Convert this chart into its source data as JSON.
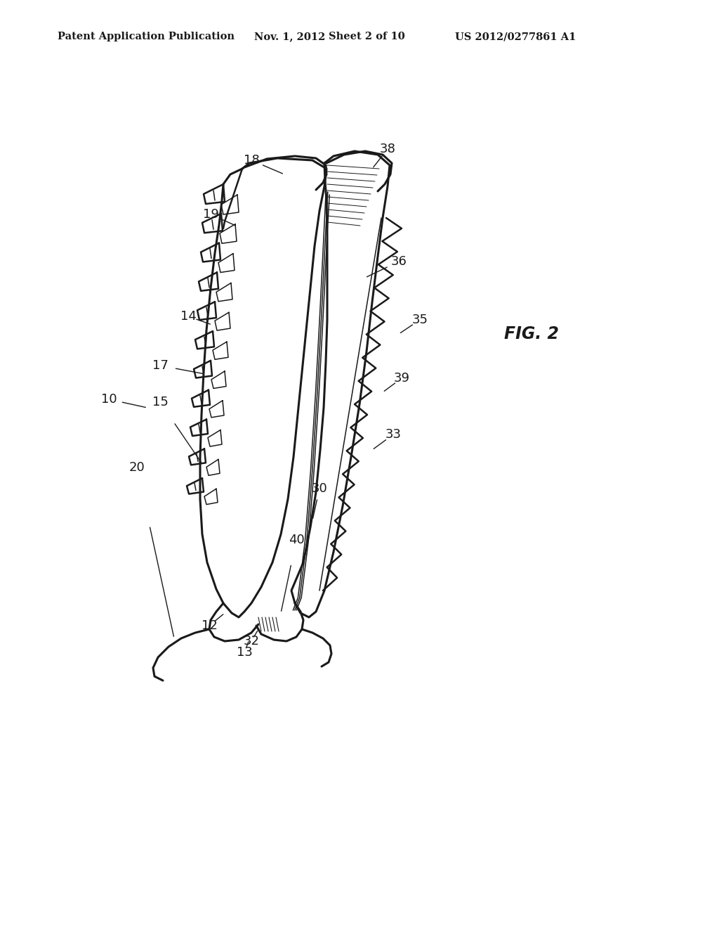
{
  "bg_color": "#ffffff",
  "line_color": "#1a1a1a",
  "header_text": "Patent Application Publication",
  "header_date": "Nov. 1, 2012",
  "header_sheet": "Sheet 2 of 10",
  "header_patent": "US 2012/0277861 A1",
  "fig_label": "FIG. 2",
  "title_fontsize": 10.5,
  "label_fontsize": 13,
  "fig_label_fontsize": 17
}
